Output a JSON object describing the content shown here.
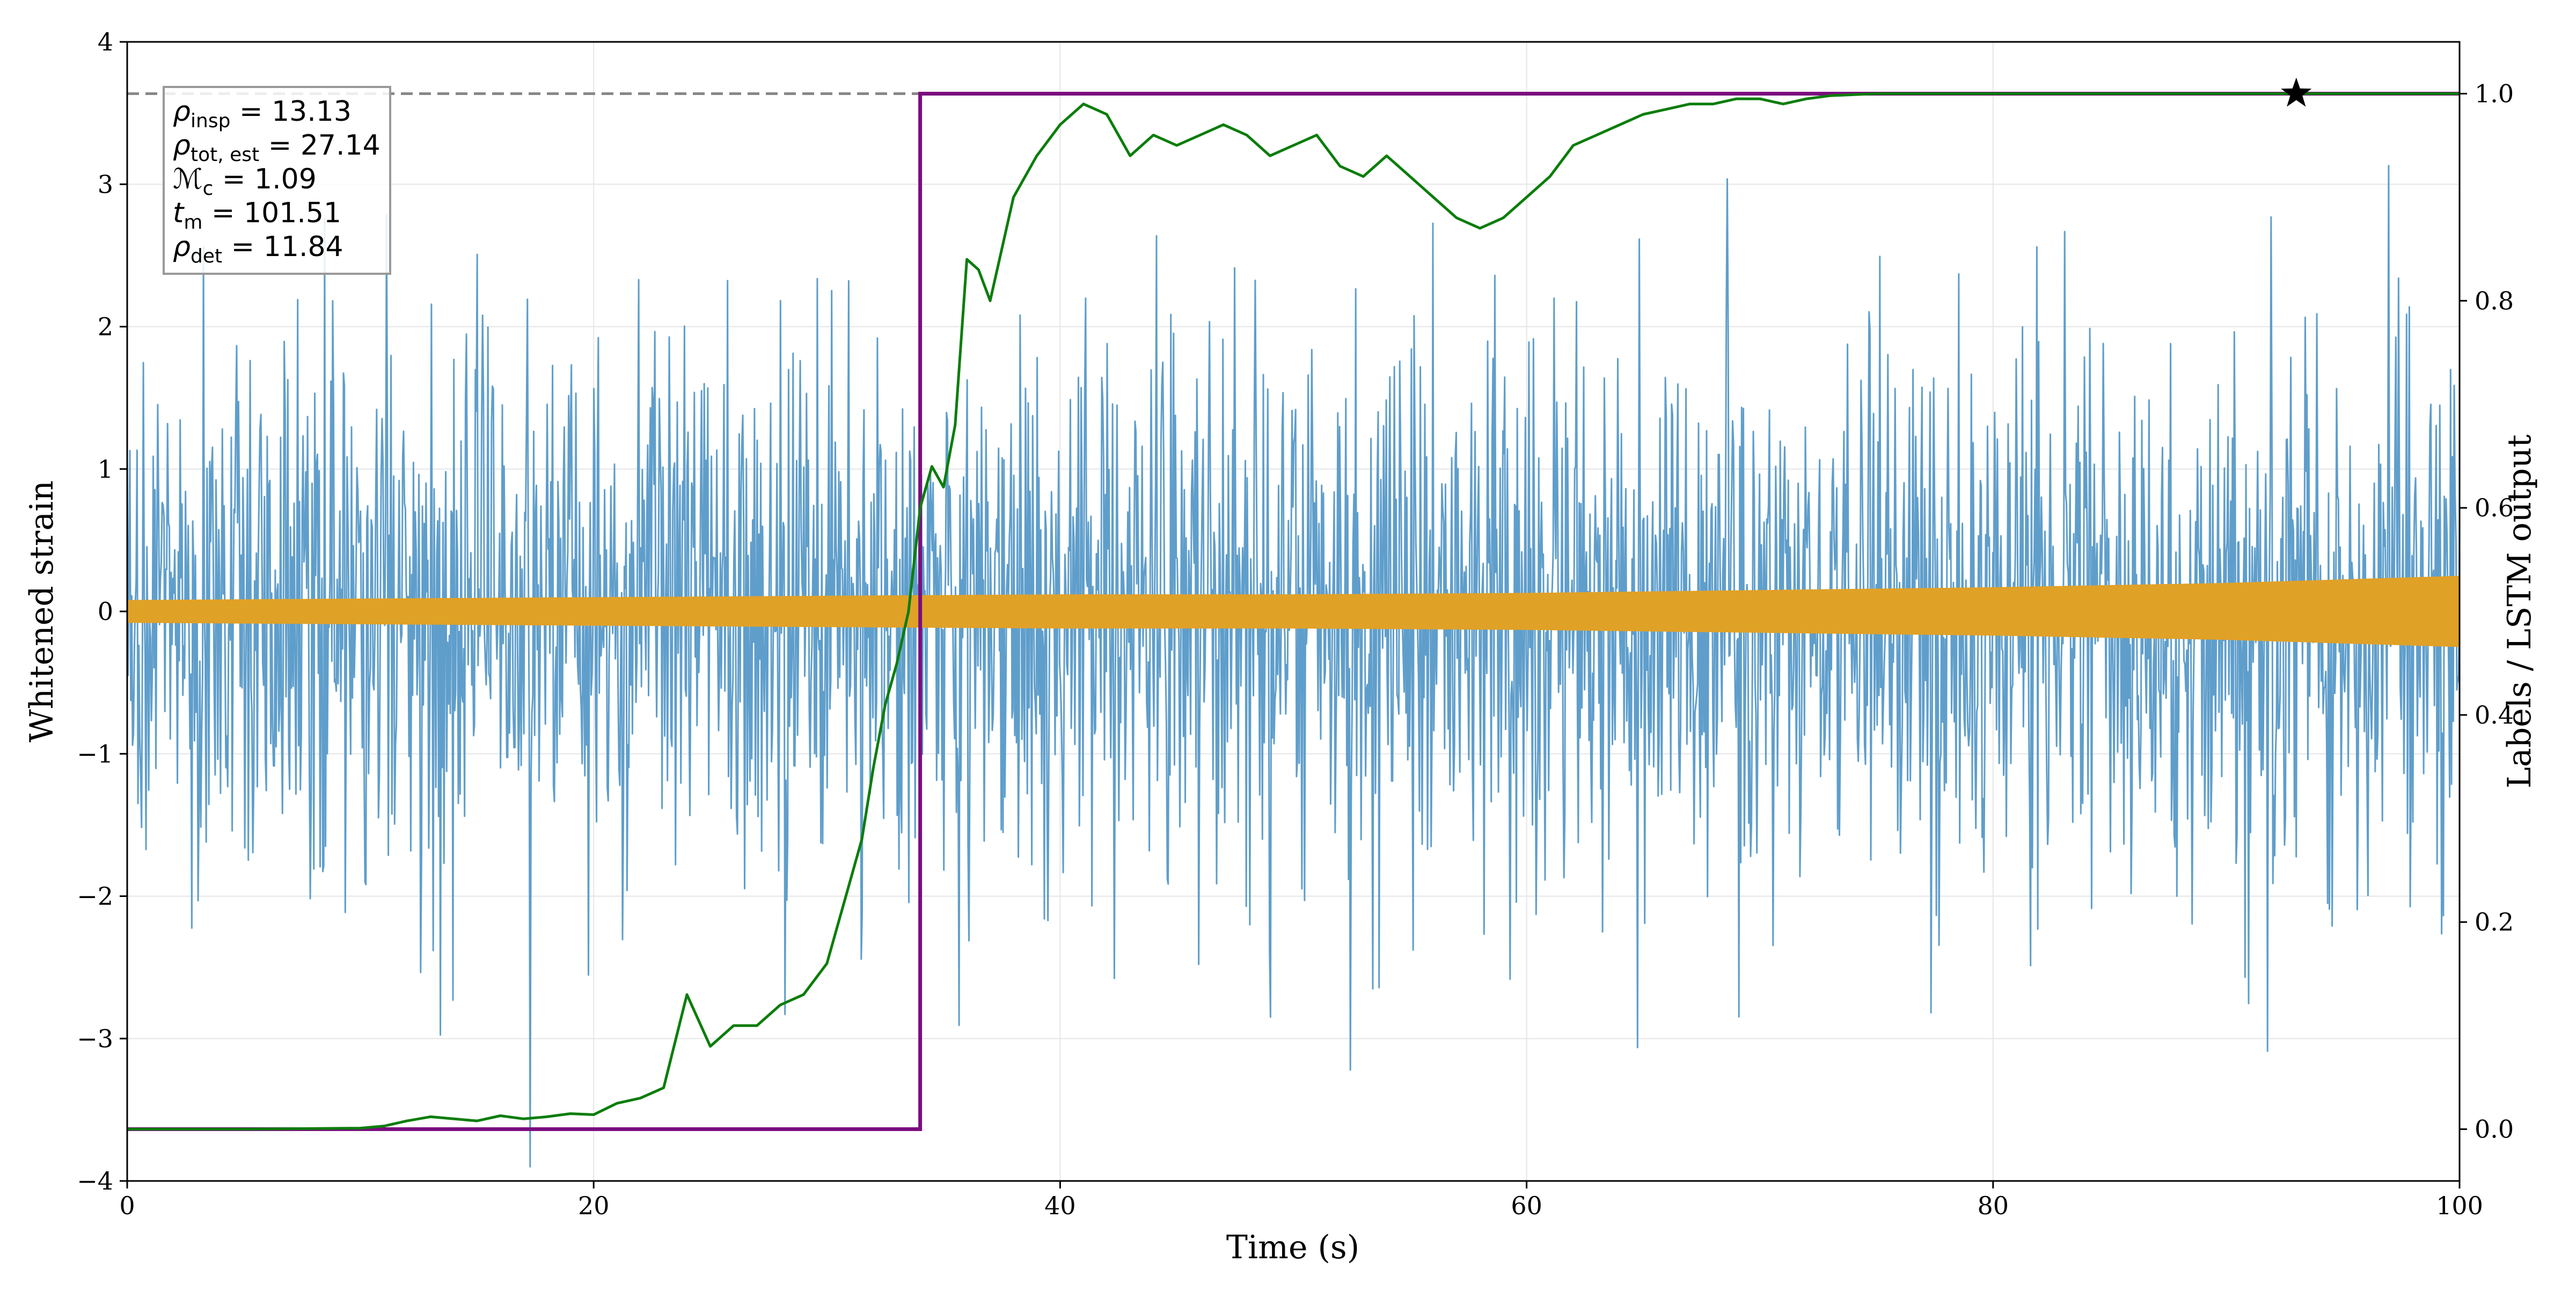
{
  "chart_data": {
    "type": "line",
    "title": "",
    "xlabel": "Time (s)",
    "ylabel_left": "Whitened strain",
    "ylabel_right": "Labels / LSTM output",
    "xlim": [
      0,
      100
    ],
    "ylim_left": [
      -4,
      4
    ],
    "ylim_right": [
      -0.05,
      1.05
    ],
    "x_ticks": [
      0,
      20,
      40,
      60,
      80,
      100
    ],
    "y_left_ticks": [
      -4,
      -3,
      -2,
      -1,
      0,
      1,
      2,
      3,
      4
    ],
    "y_left_tick_labels": [
      "−4",
      "−3",
      "−2",
      "−1",
      "0",
      "1",
      "2",
      "3",
      "4"
    ],
    "y_right_ticks": [
      0.0,
      0.2,
      0.4,
      0.6,
      0.8,
      1.0
    ],
    "y_right_tick_labels": [
      "0.0",
      "0.2",
      "0.4",
      "0.6",
      "0.8",
      "1.0"
    ],
    "grid": true,
    "colors": {
      "strain": "#5f9ecb",
      "template": "#e0a127",
      "label": "#7b0d7e",
      "lstm": "#0b7d0b",
      "reference": "#888888",
      "marker": "#000000"
    },
    "series": [
      {
        "name": "whitened strain",
        "axis": "left",
        "kind": "noise",
        "amplitude_envelope": {
          "typical": 1.0,
          "peak_range": [
            -3.9,
            3.5
          ]
        }
      },
      {
        "name": "signal template",
        "axis": "left",
        "kind": "chirp",
        "x": [
          0,
          10,
          20,
          30,
          40,
          50,
          60,
          70,
          80,
          90,
          100
        ],
        "amplitude": [
          0.08,
          0.09,
          0.1,
          0.11,
          0.12,
          0.12,
          0.13,
          0.15,
          0.17,
          0.2,
          0.25
        ]
      },
      {
        "name": "label",
        "axis": "right",
        "x": [
          0,
          34,
          34,
          100
        ],
        "y": [
          0,
          0,
          1,
          1
        ]
      },
      {
        "name": "LSTM output",
        "axis": "right",
        "x": [
          0,
          5,
          10,
          11,
          12,
          13,
          14,
          15,
          16,
          17,
          18,
          19,
          20,
          21,
          22,
          23,
          24,
          25,
          26,
          27,
          28,
          29,
          30,
          31,
          31.5,
          32,
          32.5,
          33,
          33.5,
          34,
          34.5,
          35,
          35.5,
          36,
          36.5,
          37,
          38,
          39,
          40,
          41,
          42,
          43,
          44,
          45,
          46,
          47,
          48,
          49,
          50,
          51,
          52,
          53,
          54,
          55,
          56,
          57,
          58,
          59,
          60,
          61,
          62,
          63,
          64,
          65,
          66,
          67,
          68,
          69,
          70,
          71,
          72,
          73,
          74,
          75,
          77,
          80,
          90,
          100
        ],
        "y": [
          0.0,
          0.0,
          0.001,
          0.003,
          0.008,
          0.012,
          0.01,
          0.008,
          0.013,
          0.01,
          0.012,
          0.015,
          0.014,
          0.025,
          0.03,
          0.04,
          0.13,
          0.08,
          0.1,
          0.1,
          0.12,
          0.13,
          0.16,
          0.24,
          0.28,
          0.35,
          0.41,
          0.45,
          0.5,
          0.6,
          0.64,
          0.62,
          0.68,
          0.84,
          0.83,
          0.8,
          0.9,
          0.94,
          0.97,
          0.99,
          0.98,
          0.94,
          0.96,
          0.95,
          0.96,
          0.97,
          0.96,
          0.94,
          0.95,
          0.96,
          0.93,
          0.92,
          0.94,
          0.92,
          0.9,
          0.88,
          0.87,
          0.88,
          0.9,
          0.92,
          0.95,
          0.96,
          0.97,
          0.98,
          0.985,
          0.99,
          0.99,
          0.995,
          0.995,
          0.99,
          0.995,
          0.998,
          0.999,
          1.0,
          1.0,
          1.0,
          1.0,
          1.0
        ]
      },
      {
        "name": "reference level",
        "axis": "right",
        "style": "dashed",
        "y": 1.0
      }
    ],
    "marker": {
      "type": "star",
      "x": 93,
      "y": 1.0,
      "axis": "right"
    },
    "annotation_box": {
      "position": "top-left",
      "lines": [
        {
          "symbol": "ρ",
          "sub": "insp",
          "value": "= 13.13"
        },
        {
          "symbol": "ρ",
          "sub": "tot, est",
          "value": "= 27.14"
        },
        {
          "symbol": "ℳ",
          "sub": "c",
          "value": "= 1.09"
        },
        {
          "symbol": "t",
          "sub": "m",
          "value": "= 101.51"
        },
        {
          "symbol": "ρ",
          "sub": "det",
          "value": "= 11.84"
        }
      ]
    }
  }
}
